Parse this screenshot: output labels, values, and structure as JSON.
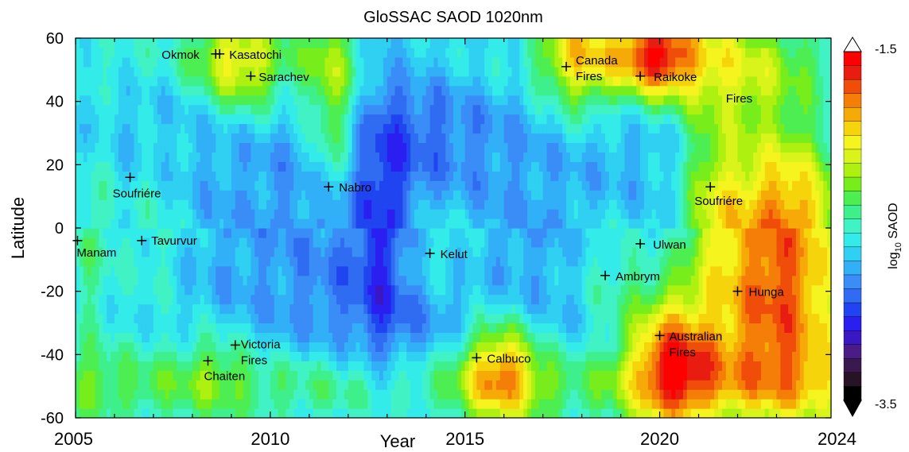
{
  "chart_data": {
    "type": "heatmap",
    "title": "GloSSAC SAOD 1020nm",
    "xlabel": "Year",
    "ylabel": "Latitude",
    "x_ticks": [
      "2005",
      "2010",
      "2015",
      "2020",
      "2024"
    ],
    "x_tick_values": [
      2005,
      2010,
      2015,
      2020,
      2024
    ],
    "y_ticks": [
      "60",
      "40",
      "20",
      "0",
      "-20",
      "-40",
      "-60"
    ],
    "y_tick_values": [
      60,
      40,
      20,
      0,
      -20,
      -40,
      -60
    ],
    "xlim": [
      2005,
      2024.4
    ],
    "ylim": [
      -60,
      60
    ],
    "colorbar": {
      "label_main": "log",
      "label_sub": "10",
      "label_rest": " SAOD",
      "max_label": "-1.5",
      "min_label": "-3.5",
      "range": [
        -3.5,
        -1.5
      ]
    },
    "events": [
      {
        "name": "Manam",
        "year": 2005.05,
        "lat": -4
      },
      {
        "name": "Soufriére",
        "year": 2006.4,
        "lat": 16
      },
      {
        "name": "Tavurvur",
        "year": 2006.7,
        "lat": -4
      },
      {
        "name": "Okmok",
        "year": 2008.6,
        "lat": 55
      },
      {
        "name": "Kasatochi",
        "year": 2008.7,
        "lat": 55
      },
      {
        "name": "Sarachev",
        "year": 2009.5,
        "lat": 48
      },
      {
        "name": "Chaiten",
        "year": 2008.4,
        "lat": -42
      },
      {
        "name": "Victoria Fires",
        "year": 2009.1,
        "lat": -37
      },
      {
        "name": "Nabro",
        "year": 2011.5,
        "lat": 13
      },
      {
        "name": "Kelut",
        "year": 2014.1,
        "lat": -8
      },
      {
        "name": "Calbuco",
        "year": 2015.3,
        "lat": -41
      },
      {
        "name": "Canada Fires",
        "year": 2017.6,
        "lat": 51
      },
      {
        "name": "Ambrym",
        "year": 2018.6,
        "lat": -15
      },
      {
        "name": "Raikoke",
        "year": 2019.5,
        "lat": 48
      },
      {
        "name": "Ulwan",
        "year": 2019.5,
        "lat": -5
      },
      {
        "name": "Australian Fires",
        "year": 2020.0,
        "lat": -34
      },
      {
        "name": "Soufriére",
        "year": 2021.3,
        "lat": 13
      },
      {
        "name": "Hunga",
        "year": 2022.0,
        "lat": -20
      }
    ],
    "free_labels": [
      {
        "text": "Fires",
        "year": 2021.7,
        "lat": 50
      }
    ]
  }
}
